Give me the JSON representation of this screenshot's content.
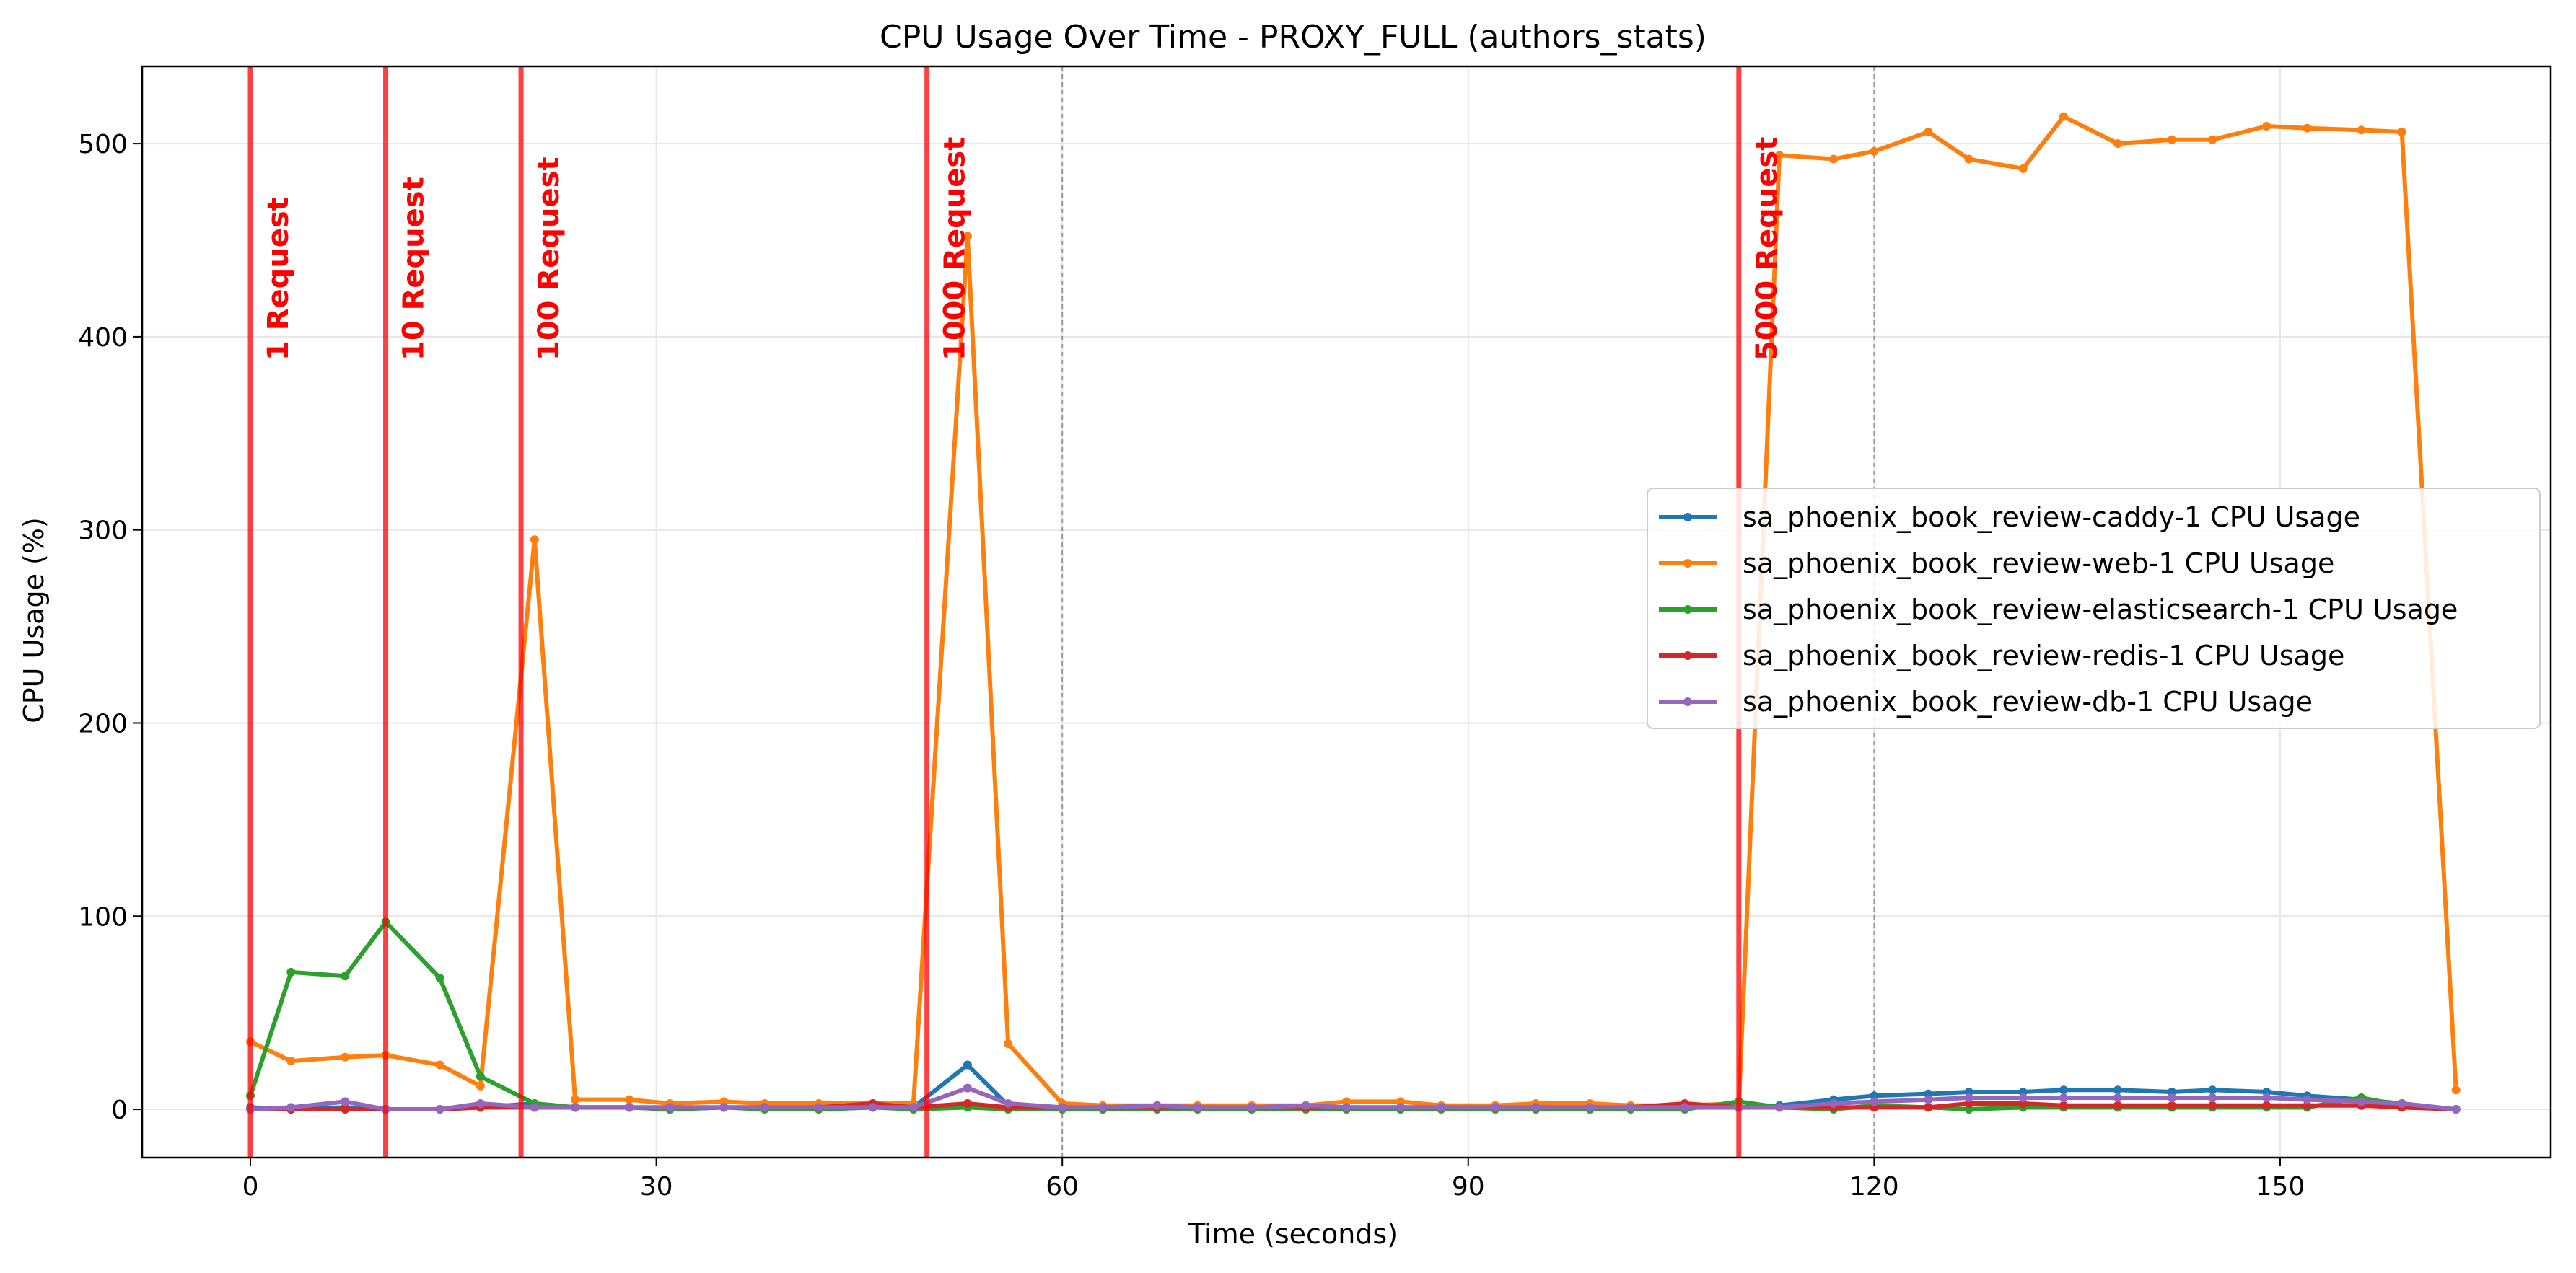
{
  "chart_data": {
    "type": "line",
    "title": "CPU Usage Over Time - PROXY_FULL (authors_stats)",
    "xlabel": "Time (seconds)",
    "ylabel": "CPU Usage (%)",
    "xlim": [
      -8,
      170
    ],
    "ylim": [
      -25,
      540
    ],
    "xticks": [
      0,
      30,
      60,
      90,
      120,
      150
    ],
    "yticks": [
      0,
      100,
      200,
      300,
      400,
      500
    ],
    "grid": true,
    "legend_position": "center-right",
    "x": [
      0,
      3,
      7,
      10,
      14,
      17,
      21,
      24,
      28,
      31,
      35,
      38,
      42,
      46,
      49,
      53,
      56,
      60,
      63,
      67,
      70,
      74,
      78,
      81,
      85,
      88,
      92,
      95,
      99,
      102,
      106,
      110,
      113,
      117,
      120,
      124,
      127,
      131,
      134,
      138,
      142,
      145,
      149,
      152,
      156,
      159,
      163
    ],
    "series": [
      {
        "name": "sa_phoenix_book_review-caddy-1 CPU Usage",
        "color": "#1f77b4",
        "values": [
          1,
          0,
          1,
          0,
          0,
          1,
          3,
          1,
          1,
          0,
          1,
          1,
          0,
          1,
          1,
          23,
          2,
          1,
          0,
          1,
          1,
          1,
          1,
          1,
          1,
          1,
          1,
          1,
          1,
          1,
          1,
          1,
          2,
          5,
          7,
          8,
          9,
          9,
          10,
          10,
          9,
          10,
          9,
          7,
          5,
          3,
          0
        ]
      },
      {
        "name": "sa_phoenix_book_review-web-1 CPU Usage",
        "color": "#ff7f0e",
        "values": [
          35,
          25,
          27,
          28,
          23,
          12,
          295,
          5,
          5,
          3,
          4,
          3,
          3,
          3,
          3,
          452,
          34,
          3,
          2,
          2,
          2,
          2,
          2,
          4,
          4,
          2,
          2,
          3,
          3,
          2,
          2,
          3,
          494,
          492,
          496,
          506,
          492,
          487,
          514,
          500,
          502,
          502,
          509,
          508,
          507,
          506,
          10
        ]
      },
      {
        "name": "sa_phoenix_book_review-elasticsearch-1 CPU Usage",
        "color": "#2ca02c",
        "values": [
          7,
          71,
          69,
          97,
          68,
          17,
          3,
          1,
          1,
          0,
          1,
          0,
          0,
          1,
          0,
          1,
          0,
          0,
          0,
          0,
          0,
          0,
          0,
          0,
          0,
          0,
          0,
          0,
          0,
          0,
          0,
          4,
          1,
          0,
          2,
          1,
          0,
          1,
          1,
          1,
          1,
          1,
          1,
          1,
          6,
          2,
          0
        ]
      },
      {
        "name": "sa_phoenix_book_review-redis-1 CPU Usage",
        "color": "#d62728",
        "values": [
          0,
          0,
          0,
          0,
          0,
          1,
          1,
          1,
          1,
          1,
          1,
          1,
          1,
          3,
          1,
          3,
          1,
          1,
          1,
          1,
          1,
          1,
          1,
          1,
          1,
          1,
          1,
          1,
          1,
          1,
          3,
          1,
          1,
          1,
          1,
          1,
          3,
          3,
          2,
          2,
          2,
          2,
          2,
          2,
          2,
          1,
          0
        ]
      },
      {
        "name": "sa_phoenix_book_review-db-1 CPU Usage",
        "color": "#9467bd",
        "values": [
          0,
          1,
          4,
          0,
          0,
          3,
          1,
          1,
          1,
          1,
          1,
          1,
          1,
          1,
          1,
          11,
          3,
          1,
          1,
          2,
          1,
          1,
          2,
          1,
          1,
          1,
          1,
          1,
          1,
          1,
          1,
          1,
          1,
          3,
          4,
          5,
          6,
          6,
          6,
          6,
          6,
          6,
          6,
          5,
          4,
          3,
          0
        ]
      }
    ],
    "markers": [
      {
        "x": 0,
        "label": "1 Request"
      },
      {
        "x": 10,
        "label": "10 Request"
      },
      {
        "x": 20,
        "label": "100 Request"
      },
      {
        "x": 50,
        "label": "1000 Request"
      },
      {
        "x": 110,
        "label": "5000 Request"
      }
    ],
    "dashed_lines_x": [
      60,
      120
    ]
  }
}
